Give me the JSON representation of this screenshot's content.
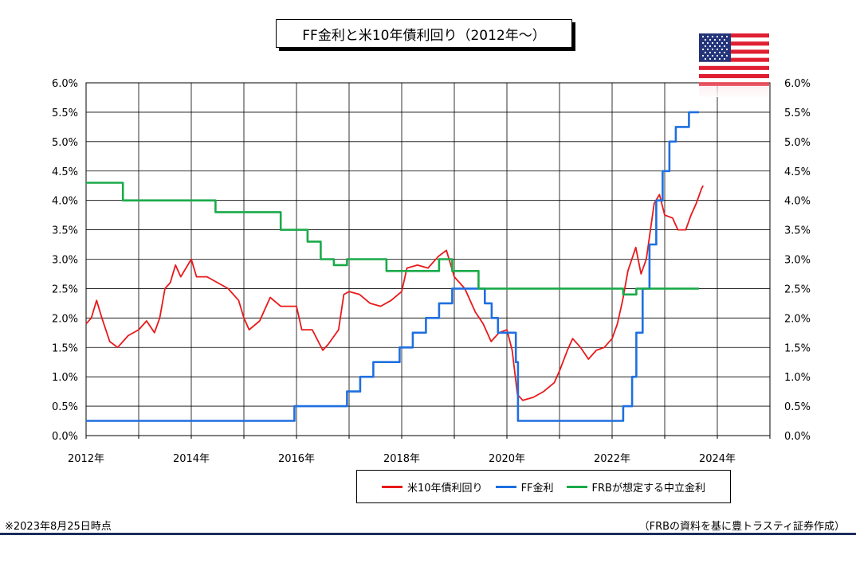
{
  "title": "FF金利と米10年債利回り（2012年～）",
  "footnote_left": "※2023年8月25日時点",
  "footnote_right": "（FRBの資料を基に豊トラスティ証券作成）",
  "flag_icon": "us-flag-icon",
  "chart_data": {
    "type": "line",
    "x_tick_labels": [
      "2012年",
      "2014年",
      "2016年",
      "2018年",
      "2020年",
      "2022年",
      "2024年"
    ],
    "y_tick_labels": [
      "0.0%",
      "0.5%",
      "1.0%",
      "1.5%",
      "2.0%",
      "2.5%",
      "3.0%",
      "3.5%",
      "4.0%",
      "4.5%",
      "5.0%",
      "5.5%",
      "6.0%"
    ],
    "xlim": [
      2012,
      2025
    ],
    "ylim": [
      0,
      6
    ],
    "grid": true,
    "legend_position": "bottom-right",
    "series": [
      {
        "name": "米10年債利回り",
        "color": "#e8191b",
        "points": [
          [
            2012.0,
            1.9
          ],
          [
            2012.1,
            2.0
          ],
          [
            2012.2,
            2.3
          ],
          [
            2012.3,
            2.0
          ],
          [
            2012.45,
            1.6
          ],
          [
            2012.6,
            1.5
          ],
          [
            2012.8,
            1.7
          ],
          [
            2013.0,
            1.8
          ],
          [
            2013.15,
            1.95
          ],
          [
            2013.3,
            1.75
          ],
          [
            2013.4,
            2.0
          ],
          [
            2013.5,
            2.5
          ],
          [
            2013.6,
            2.6
          ],
          [
            2013.7,
            2.9
          ],
          [
            2013.8,
            2.7
          ],
          [
            2014.0,
            3.0
          ],
          [
            2014.1,
            2.7
          ],
          [
            2014.3,
            2.7
          ],
          [
            2014.5,
            2.6
          ],
          [
            2014.7,
            2.5
          ],
          [
            2014.9,
            2.3
          ],
          [
            2015.0,
            2.0
          ],
          [
            2015.1,
            1.8
          ],
          [
            2015.3,
            1.95
          ],
          [
            2015.5,
            2.35
          ],
          [
            2015.7,
            2.2
          ],
          [
            2015.9,
            2.2
          ],
          [
            2016.0,
            2.2
          ],
          [
            2016.1,
            1.8
          ],
          [
            2016.3,
            1.8
          ],
          [
            2016.5,
            1.45
          ],
          [
            2016.6,
            1.55
          ],
          [
            2016.8,
            1.8
          ],
          [
            2016.9,
            2.4
          ],
          [
            2017.0,
            2.45
          ],
          [
            2017.2,
            2.4
          ],
          [
            2017.4,
            2.25
          ],
          [
            2017.6,
            2.2
          ],
          [
            2017.8,
            2.3
          ],
          [
            2018.0,
            2.45
          ],
          [
            2018.1,
            2.85
          ],
          [
            2018.3,
            2.9
          ],
          [
            2018.5,
            2.85
          ],
          [
            2018.7,
            3.05
          ],
          [
            2018.85,
            3.15
          ],
          [
            2019.0,
            2.7
          ],
          [
            2019.2,
            2.5
          ],
          [
            2019.4,
            2.1
          ],
          [
            2019.55,
            1.9
          ],
          [
            2019.7,
            1.6
          ],
          [
            2019.85,
            1.75
          ],
          [
            2020.0,
            1.8
          ],
          [
            2020.1,
            1.45
          ],
          [
            2020.2,
            0.7
          ],
          [
            2020.3,
            0.6
          ],
          [
            2020.5,
            0.65
          ],
          [
            2020.7,
            0.75
          ],
          [
            2020.9,
            0.9
          ],
          [
            2021.0,
            1.1
          ],
          [
            2021.15,
            1.45
          ],
          [
            2021.25,
            1.65
          ],
          [
            2021.4,
            1.5
          ],
          [
            2021.55,
            1.3
          ],
          [
            2021.7,
            1.45
          ],
          [
            2021.85,
            1.5
          ],
          [
            2022.0,
            1.65
          ],
          [
            2022.1,
            1.9
          ],
          [
            2022.2,
            2.3
          ],
          [
            2022.3,
            2.8
          ],
          [
            2022.45,
            3.2
          ],
          [
            2022.55,
            2.75
          ],
          [
            2022.65,
            3.0
          ],
          [
            2022.8,
            3.95
          ],
          [
            2022.9,
            4.1
          ],
          [
            2023.0,
            3.75
          ],
          [
            2023.15,
            3.7
          ],
          [
            2023.25,
            3.5
          ],
          [
            2023.4,
            3.5
          ],
          [
            2023.5,
            3.75
          ],
          [
            2023.6,
            3.95
          ],
          [
            2023.7,
            4.2
          ],
          [
            2023.73,
            4.25
          ]
        ]
      },
      {
        "name": "FF金利",
        "color": "#1f6fe0",
        "points": [
          [
            2012.0,
            0.25
          ],
          [
            2015.96,
            0.25
          ],
          [
            2015.96,
            0.5
          ],
          [
            2016.96,
            0.5
          ],
          [
            2016.96,
            0.75
          ],
          [
            2017.21,
            0.75
          ],
          [
            2017.21,
            1.0
          ],
          [
            2017.46,
            1.0
          ],
          [
            2017.46,
            1.25
          ],
          [
            2017.96,
            1.25
          ],
          [
            2017.96,
            1.5
          ],
          [
            2018.21,
            1.5
          ],
          [
            2018.21,
            1.75
          ],
          [
            2018.46,
            1.75
          ],
          [
            2018.46,
            2.0
          ],
          [
            2018.71,
            2.0
          ],
          [
            2018.71,
            2.25
          ],
          [
            2018.96,
            2.25
          ],
          [
            2018.96,
            2.5
          ],
          [
            2019.58,
            2.5
          ],
          [
            2019.58,
            2.25
          ],
          [
            2019.71,
            2.25
          ],
          [
            2019.71,
            2.0
          ],
          [
            2019.83,
            2.0
          ],
          [
            2019.83,
            1.75
          ],
          [
            2020.17,
            1.75
          ],
          [
            2020.17,
            1.25
          ],
          [
            2020.21,
            1.25
          ],
          [
            2020.21,
            0.25
          ],
          [
            2022.21,
            0.25
          ],
          [
            2022.21,
            0.5
          ],
          [
            2022.38,
            0.5
          ],
          [
            2022.38,
            1.0
          ],
          [
            2022.46,
            1.0
          ],
          [
            2022.46,
            1.75
          ],
          [
            2022.58,
            1.75
          ],
          [
            2022.58,
            2.5
          ],
          [
            2022.71,
            2.5
          ],
          [
            2022.71,
            3.25
          ],
          [
            2022.84,
            3.25
          ],
          [
            2022.84,
            4.0
          ],
          [
            2022.96,
            4.0
          ],
          [
            2022.96,
            4.5
          ],
          [
            2023.09,
            4.5
          ],
          [
            2023.09,
            5.0
          ],
          [
            2023.21,
            5.0
          ],
          [
            2023.21,
            5.25
          ],
          [
            2023.46,
            5.25
          ],
          [
            2023.46,
            5.5
          ],
          [
            2023.65,
            5.5
          ]
        ]
      },
      {
        "name": "FRBが想定する中立金利",
        "color": "#1aaa4a",
        "points": [
          [
            2012.0,
            4.3
          ],
          [
            2012.7,
            4.3
          ],
          [
            2012.7,
            4.0
          ],
          [
            2014.46,
            4.0
          ],
          [
            2014.46,
            3.8
          ],
          [
            2015.7,
            3.8
          ],
          [
            2015.7,
            3.5
          ],
          [
            2016.21,
            3.5
          ],
          [
            2016.21,
            3.3
          ],
          [
            2016.46,
            3.3
          ],
          [
            2016.46,
            3.0
          ],
          [
            2016.71,
            3.0
          ],
          [
            2016.71,
            2.9
          ],
          [
            2016.96,
            2.9
          ],
          [
            2016.96,
            3.0
          ],
          [
            2017.71,
            3.0
          ],
          [
            2017.71,
            2.8
          ],
          [
            2018.71,
            2.8
          ],
          [
            2018.71,
            3.0
          ],
          [
            2018.96,
            3.0
          ],
          [
            2018.96,
            2.8
          ],
          [
            2019.46,
            2.8
          ],
          [
            2019.46,
            2.5
          ],
          [
            2022.21,
            2.5
          ],
          [
            2022.21,
            2.4
          ],
          [
            2022.46,
            2.4
          ],
          [
            2022.46,
            2.5
          ],
          [
            2023.65,
            2.5
          ]
        ]
      }
    ]
  }
}
